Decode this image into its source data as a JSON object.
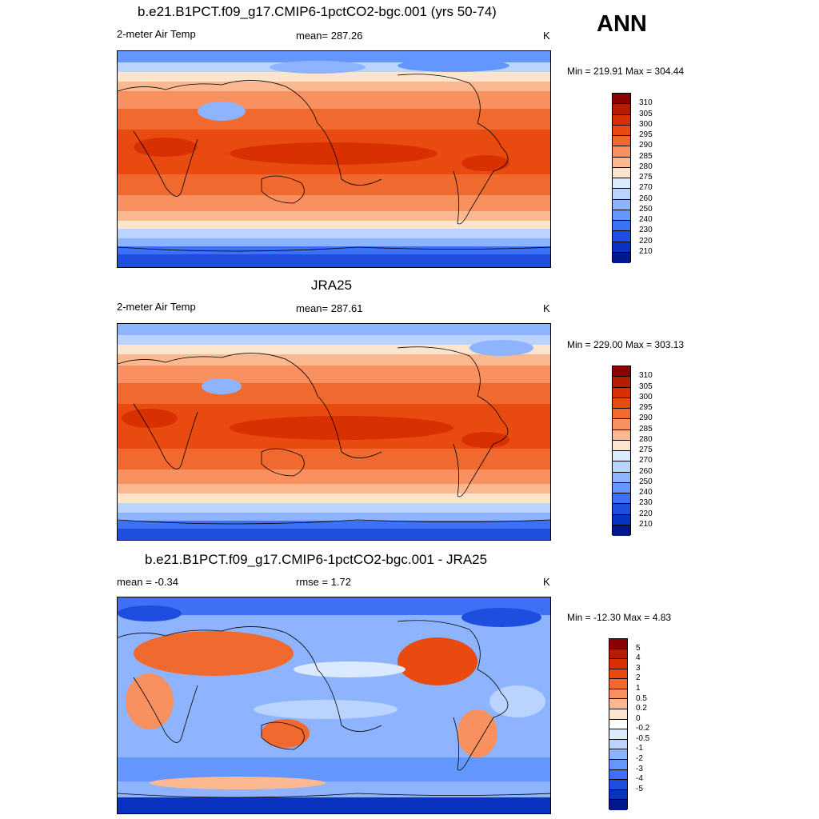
{
  "season": "ANN",
  "colors": {
    "temp_scale": [
      "#8b0000",
      "#b81c00",
      "#d83000",
      "#e84a10",
      "#f06a30",
      "#f89060",
      "#fcb890",
      "#fde4cc",
      "#dceaff",
      "#bad4ff",
      "#8eb4ff",
      "#6496ff",
      "#3c70f5",
      "#1e4ee0",
      "#0a32c0",
      "#00188c"
    ],
    "diff_scale": [
      "#8b0000",
      "#b81c00",
      "#d83000",
      "#e84a10",
      "#f06a30",
      "#f89060",
      "#fcb890",
      "#fde4cc",
      "#ffffff",
      "#dceaff",
      "#bad4ff",
      "#8eb4ff",
      "#6496ff",
      "#3c70f5",
      "#1e4ee0",
      "#0a32c0",
      "#00188c"
    ]
  },
  "panels": [
    {
      "title": "b.e21.B1PCT.f09_g17.CMIP6-1pctCO2-bgc.001 (yrs 50-74)",
      "left_label": "2-meter Air Temp",
      "center_label": "mean= 287.26",
      "units": "K",
      "minmax": "Min = 219.91 Max = 304.44",
      "cbar_labels": [
        "310",
        "305",
        "300",
        "295",
        "290",
        "285",
        "280",
        "275",
        "270",
        "260",
        "250",
        "240",
        "230",
        "220",
        "210"
      ]
    },
    {
      "title": "JRA25",
      "left_label": "2-meter Air Temp",
      "center_label": "mean= 287.61",
      "units": "K",
      "minmax": "Min = 229.00 Max = 303.13",
      "cbar_labels": [
        "310",
        "305",
        "300",
        "295",
        "290",
        "285",
        "280",
        "275",
        "270",
        "260",
        "250",
        "240",
        "230",
        "220",
        "210"
      ]
    },
    {
      "title": "b.e21.B1PCT.f09_g17.CMIP6-1pctCO2-bgc.001 - JRA25",
      "left_label": "mean =  -0.34",
      "center_label": "rmse =   1.72",
      "units": "K",
      "minmax": "Min = -12.30 Max =   4.83",
      "cbar_labels": [
        "5",
        "4",
        "3",
        "2",
        "1",
        "0.5",
        "0.2",
        "0",
        "-0.2",
        "-0.5",
        "-1",
        "-2",
        "-3",
        "-4",
        "-5"
      ]
    }
  ]
}
